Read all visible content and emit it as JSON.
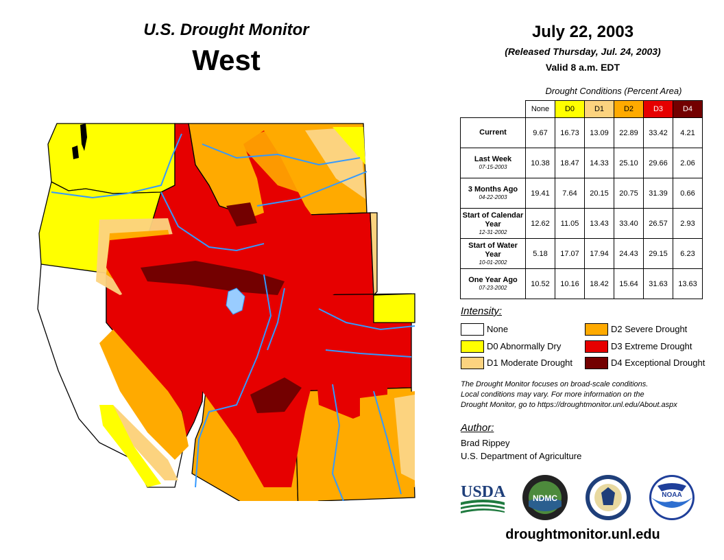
{
  "header": {
    "title": "U.S. Drought Monitor",
    "region": "West",
    "date": "July 22, 2003",
    "released": "(Released Thursday, Jul. 24, 2003)",
    "valid": "Valid 8 a.m. EDT"
  },
  "table": {
    "caption": "Drought Conditions (Percent Area)",
    "columns": [
      {
        "label": "None",
        "color": "#ffffff",
        "text_color": "#000000"
      },
      {
        "label": "D0",
        "color": "#ffff00",
        "text_color": "#000000"
      },
      {
        "label": "D1",
        "color": "#fcd37f",
        "text_color": "#000000"
      },
      {
        "label": "D2",
        "color": "#ffaa00",
        "text_color": "#000000"
      },
      {
        "label": "D3",
        "color": "#e60000",
        "text_color": "#ffffff"
      },
      {
        "label": "D4",
        "color": "#730000",
        "text_color": "#ffffff"
      }
    ],
    "rows": [
      {
        "label": "Current",
        "sublabel": "",
        "values": [
          "9.67",
          "16.73",
          "13.09",
          "22.89",
          "33.42",
          "4.21"
        ]
      },
      {
        "label": "Last Week",
        "sublabel": "07-15-2003",
        "values": [
          "10.38",
          "18.47",
          "14.33",
          "25.10",
          "29.66",
          "2.06"
        ]
      },
      {
        "label": "3 Months Ago",
        "sublabel": "04-22-2003",
        "values": [
          "19.41",
          "7.64",
          "20.15",
          "20.75",
          "31.39",
          "0.66"
        ]
      },
      {
        "label": "Start of Calendar Year",
        "sublabel": "12-31-2002",
        "values": [
          "12.62",
          "11.05",
          "13.43",
          "33.40",
          "26.57",
          "2.93"
        ]
      },
      {
        "label": "Start of Water Year",
        "sublabel": "10-01-2002",
        "values": [
          "5.18",
          "17.07",
          "17.94",
          "24.43",
          "29.15",
          "6.23"
        ]
      },
      {
        "label": "One Year Ago",
        "sublabel": "07-23-2002",
        "values": [
          "10.52",
          "10.16",
          "18.42",
          "15.64",
          "31.63",
          "13.63"
        ]
      }
    ]
  },
  "legend": {
    "title": "Intensity:",
    "items": [
      {
        "label": "None",
        "color": "#ffffff"
      },
      {
        "label": "D0 Abnormally Dry",
        "color": "#ffff00"
      },
      {
        "label": "D1 Moderate Drought",
        "color": "#fcd37f"
      },
      {
        "label": "D2 Severe Drought",
        "color": "#ffaa00"
      },
      {
        "label": "D3 Extreme Drought",
        "color": "#e60000"
      },
      {
        "label": "D4 Exceptional Drought",
        "color": "#730000"
      }
    ]
  },
  "disclaimer": [
    "The Drought Monitor focuses on broad-scale conditions.",
    "Local conditions may vary. For more information on the",
    "Drought Monitor, go to https://droughtmonitor.unl.edu/About.aspx"
  ],
  "author": {
    "title": "Author:",
    "name": "Brad Rippey",
    "org": "U.S. Department of Agriculture"
  },
  "logos": {
    "usda": "USDA",
    "ndmc": "NDMC",
    "noaa": "NOAA"
  },
  "website": "droughtmonitor.unl.edu",
  "colors": {
    "none": "#ffffff",
    "d0": "#ffff00",
    "d1": "#fcd37f",
    "d2": "#ffaa00",
    "d3": "#e60000",
    "d4": "#730000",
    "water": "#3399ff"
  }
}
